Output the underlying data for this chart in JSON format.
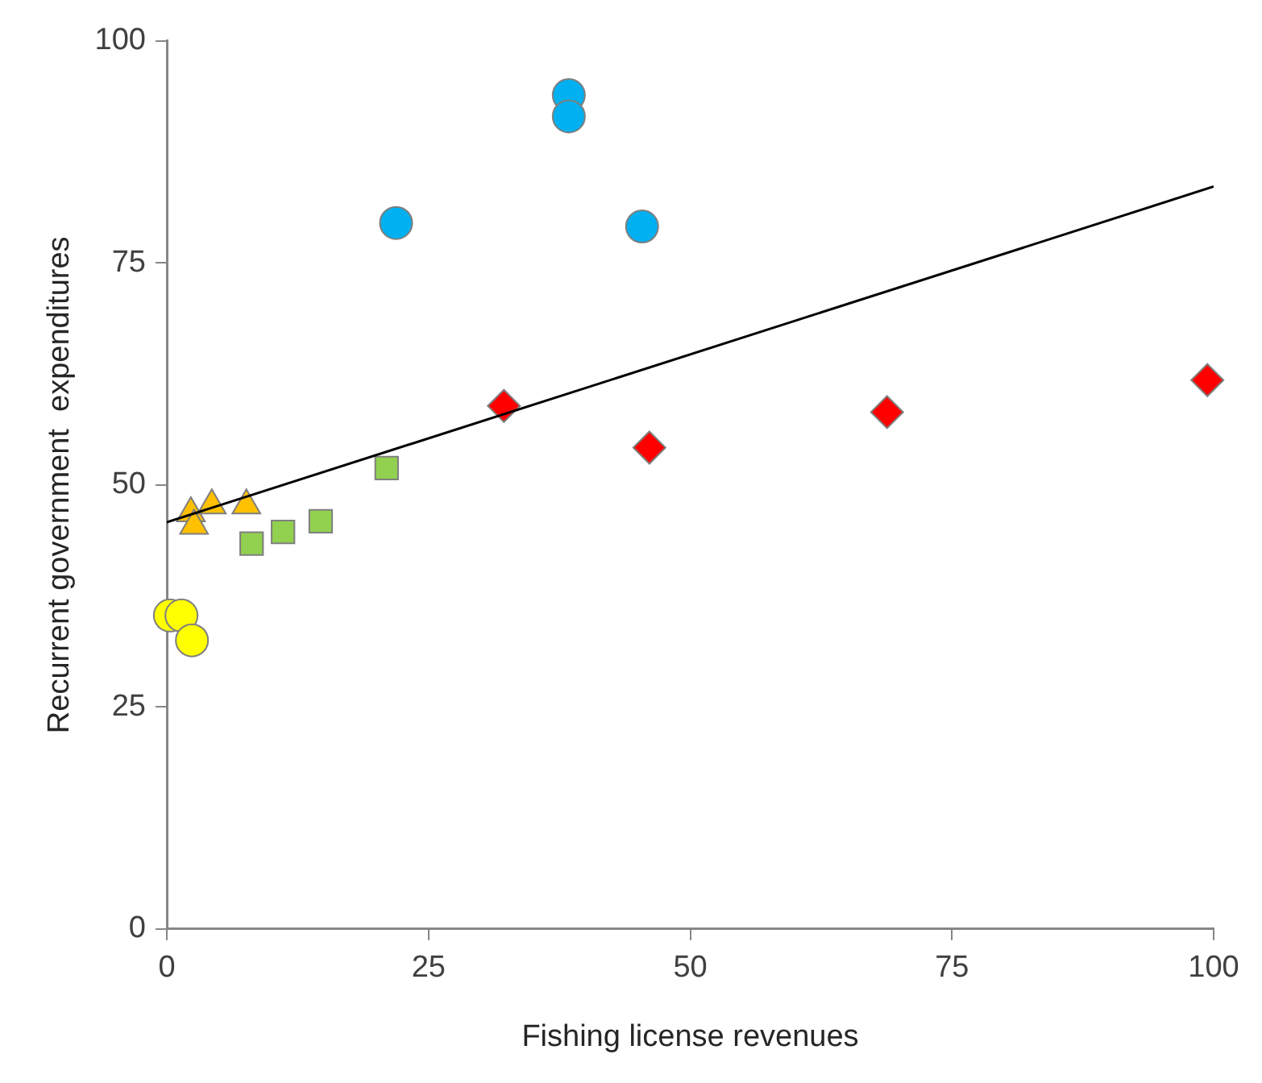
{
  "chart_data": {
    "type": "scatter",
    "xlabel": "Fishing license revenues",
    "ylabel": "Recurrent government  expenditures",
    "xlim": [
      0,
      100
    ],
    "ylim": [
      0,
      100
    ],
    "xticks": [
      0,
      25,
      50,
      75,
      100
    ],
    "yticks": [
      0,
      25,
      50,
      75,
      100
    ],
    "grid": false,
    "legend": false,
    "series": [
      {
        "color": "#ffff00",
        "marker": "circle",
        "x": [
          0.3,
          1.4,
          2.4
        ],
        "values": [
          35.3,
          35.3,
          32.5
        ]
      },
      {
        "color": "#ffc000",
        "marker": "triangle",
        "x": [
          2.3,
          4.3,
          7.6,
          2.6
        ],
        "values": [
          46.8,
          47.7,
          47.7,
          45.4
        ]
      },
      {
        "color": "#92d050",
        "marker": "square",
        "x": [
          8.1,
          11.1,
          14.7,
          21
        ],
        "values": [
          43.4,
          44.7,
          45.9,
          51.9
        ]
      },
      {
        "color": "#00b0f0",
        "marker": "circle",
        "x": [
          21.9,
          38.4,
          38.4,
          45.4
        ],
        "values": [
          79.5,
          93.9,
          91.5,
          79.1
        ]
      },
      {
        "color": "#ff0000",
        "marker": "diamond",
        "x": [
          32.2,
          46.1,
          68.8,
          99.4
        ],
        "values": [
          58.9,
          54.2,
          58.2,
          61.8
        ]
      },
      {
        "type": "line",
        "color": "#000000",
        "marker": "none",
        "x": [
          0,
          100
        ],
        "values": [
          45.8,
          83.6
        ]
      }
    ]
  }
}
